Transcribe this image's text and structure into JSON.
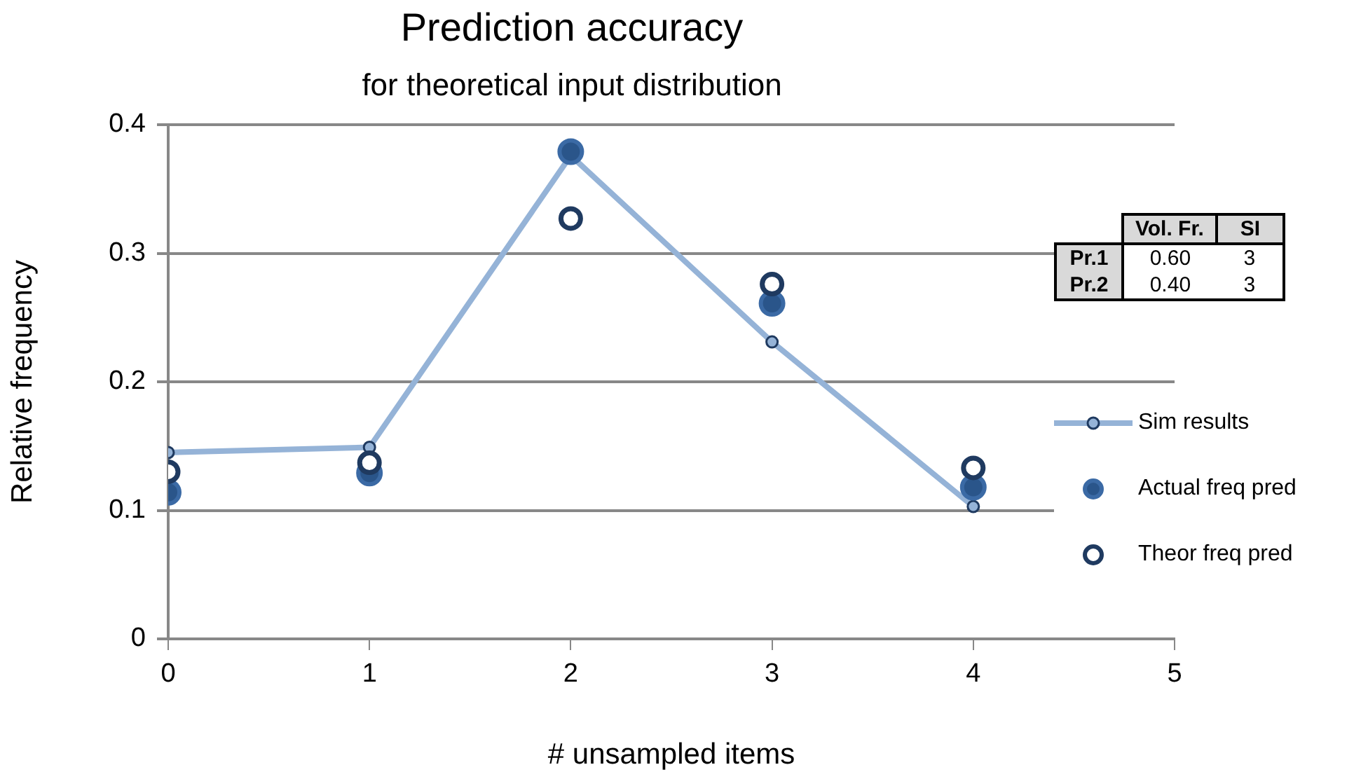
{
  "chart_data": {
    "type": "line",
    "title": "Prediction accuracy",
    "subtitle": "for theoretical input distribution",
    "xlabel": "# unsampled items",
    "ylabel": "Relative frequency",
    "x": [
      0,
      1,
      2,
      3,
      4
    ],
    "series": [
      {
        "name": "Sim results",
        "color": "#95b3d7",
        "values": [
          0.145,
          0.149,
          0.376,
          0.231,
          0.103
        ]
      },
      {
        "name": "Actual freq pred",
        "type": "scatter",
        "color": "#2a558a",
        "values": [
          0.114,
          0.129,
          0.379,
          0.261,
          0.118
        ]
      },
      {
        "name": "Theor freq pred",
        "type": "scatter",
        "color": "#1f3a60",
        "values": [
          0.13,
          0.137,
          0.327,
          0.276,
          0.133
        ]
      }
    ],
    "xlim": [
      0,
      5
    ],
    "xticks": [
      0,
      1,
      2,
      3,
      4,
      5
    ],
    "ylim": [
      0,
      0.4
    ],
    "yticks": [
      0,
      0.1,
      0.2,
      0.3,
      0.4
    ],
    "grid": "y",
    "legend": "right",
    "marker": "circle",
    "annotations": [
      "Vol. Fr.",
      "SI",
      "Pr.1",
      "0.60",
      "3",
      "Pr.2",
      "0.40",
      "3"
    ]
  }
}
